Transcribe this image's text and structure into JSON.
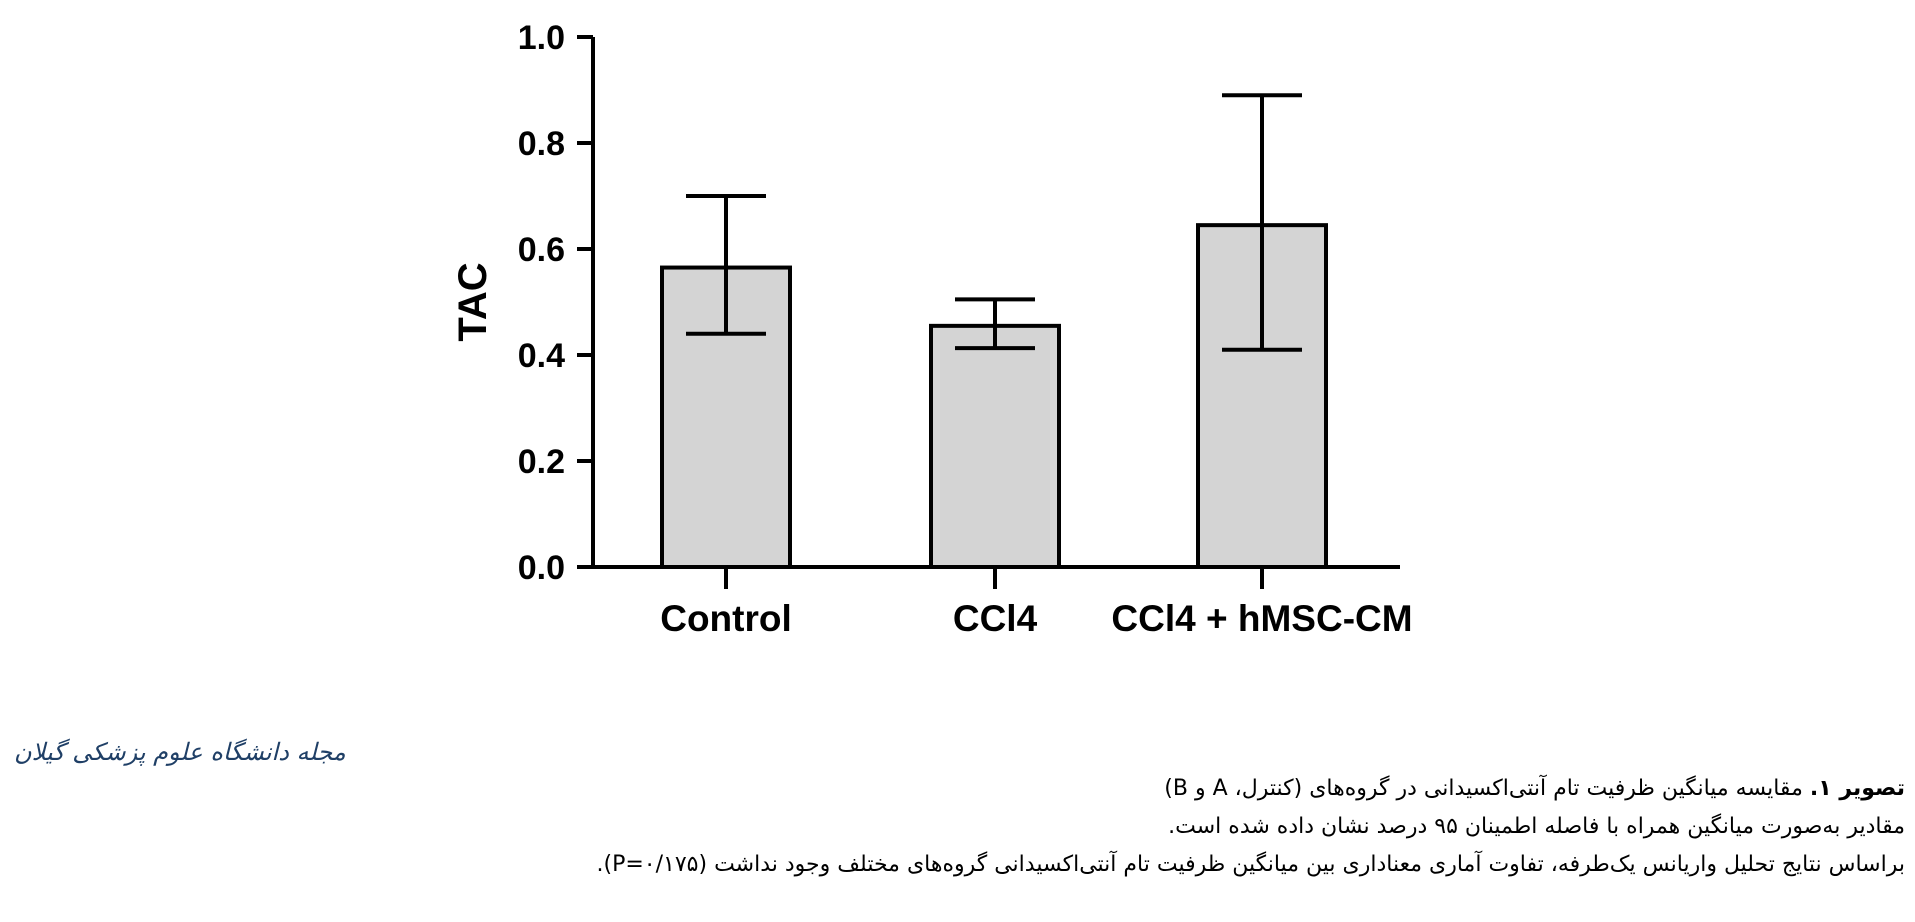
{
  "chart_data": {
    "type": "bar",
    "categories": [
      "Control",
      "CCl4",
      "CCl4 + hMSC-CM"
    ],
    "values": [
      0.565,
      0.455,
      0.645
    ],
    "error_upper": [
      0.7,
      0.505,
      0.89
    ],
    "error_lower": [
      0.44,
      0.413,
      0.41
    ],
    "ylabel": "TAC",
    "xlabel": "",
    "ylim": [
      0,
      1.0
    ],
    "yticks": [
      "0.0",
      "0.2",
      "0.4",
      "0.6",
      "0.8",
      "1.0"
    ],
    "bar_color": "#d4d4d4",
    "edge_color": "#000000",
    "grid": false
  },
  "caption": {
    "label": "تصویر ۱.",
    "line1": "مقایسه میانگین ظرفیت تام آنتی‌اکسیدانی در گروه‌های (کنترل، A و B)",
    "line2": "مقادیر به‌صورت میانگین همراه با فاصله اطمینان ۹۵ درصد نشان داده شده است.",
    "line3": "براساس نتایج تحلیل واریانس یک‌طرفه، تفاوت آماری معناداری بین میانگین ظرفیت تام آنتی‌اکسیدانی گروه‌های مختلف وجود نداشت (P=۰/۱۷۵)."
  },
  "logo": {
    "text": "مجله دانشگاه علوم پزشکی گیلان",
    "color": "#1f3f66"
  }
}
